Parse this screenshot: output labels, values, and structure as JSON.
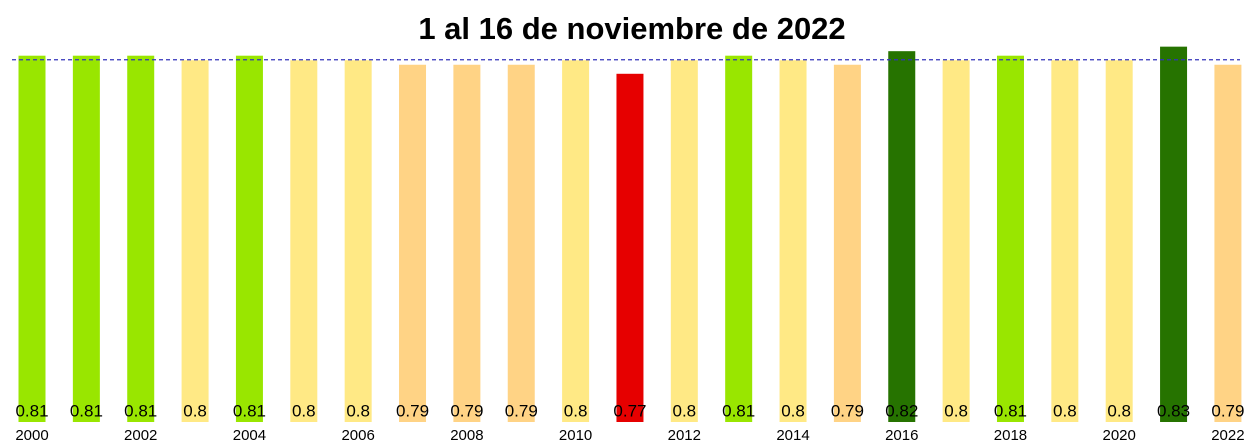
{
  "chart_data": {
    "type": "bar",
    "title": "1 al 16 de noviembre de 2022",
    "categories": [
      "2000",
      null,
      "2002",
      null,
      "2004",
      null,
      "2006",
      null,
      "2008",
      null,
      "2010",
      null,
      "2012",
      null,
      "2014",
      null,
      "2016",
      null,
      "2018",
      null,
      "2020",
      null,
      "2022"
    ],
    "values": [
      0.81,
      0.81,
      0.81,
      0.8,
      0.81,
      0.8,
      0.8,
      0.79,
      0.79,
      0.79,
      0.8,
      0.77,
      0.8,
      0.81,
      0.8,
      0.79,
      0.82,
      0.8,
      0.81,
      0.8,
      0.8,
      0.83,
      0.79
    ],
    "colors": [
      "#99e600",
      "#99e600",
      "#99e600",
      "#ffe985",
      "#99e600",
      "#ffe985",
      "#ffe985",
      "#ffd385",
      "#ffd385",
      "#ffd385",
      "#ffe985",
      "#e60000",
      "#ffe985",
      "#99e600",
      "#ffe985",
      "#ffd385",
      "#267300",
      "#ffe985",
      "#99e600",
      "#ffe985",
      "#ffe985",
      "#267300",
      "#ffd385"
    ],
    "ylim": [
      0,
      0.9
    ],
    "reference_line": {
      "value": 0.801,
      "color": "#3333bb"
    }
  }
}
